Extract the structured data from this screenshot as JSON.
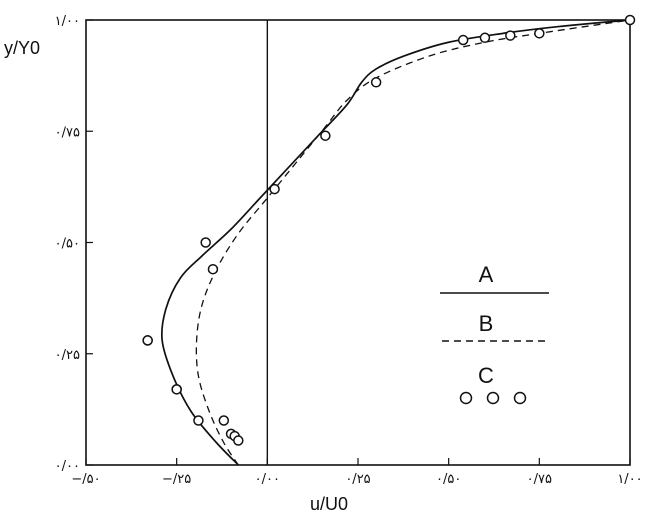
{
  "chart_data": {
    "type": "line",
    "xlabel": "u/U0",
    "ylabel": "y/Y0",
    "xlim": [
      -0.5,
      1.0
    ],
    "ylim": [
      0.0,
      1.0
    ],
    "x_ticks": [
      {
        "value": -0.5,
        "label": "−/۵۰"
      },
      {
        "value": -0.25,
        "label": "−/۲۵"
      },
      {
        "value": 0.0,
        "label": "۰/۰۰"
      },
      {
        "value": 0.25,
        "label": "۰/۲۵"
      },
      {
        "value": 0.5,
        "label": "۰/۵۰"
      },
      {
        "value": 0.75,
        "label": "۰/۷۵"
      },
      {
        "value": 1.0,
        "label": "۱/۰۰"
      }
    ],
    "y_ticks": [
      {
        "value": 0.0,
        "label": "۰/۰۰"
      },
      {
        "value": 0.25,
        "label": "۰/۲۵"
      },
      {
        "value": 0.5,
        "label": "۰/۵۰"
      },
      {
        "value": 0.75,
        "label": "۰/۷۵"
      },
      {
        "value": 1.0,
        "label": "۱/۰۰"
      }
    ],
    "series": [
      {
        "name": "A",
        "style": "solid",
        "x": [
          -0.08,
          -0.14,
          -0.21,
          -0.26,
          -0.29,
          -0.28,
          -0.24,
          -0.18,
          -0.1,
          -0.02,
          0.06,
          0.14,
          0.22,
          0.26,
          0.3,
          0.38,
          0.5,
          0.65,
          0.8,
          1.0
        ],
        "y": [
          0.0,
          0.05,
          0.12,
          0.2,
          0.28,
          0.35,
          0.42,
          0.47,
          0.53,
          0.6,
          0.67,
          0.74,
          0.81,
          0.86,
          0.89,
          0.92,
          0.95,
          0.97,
          0.985,
          1.0
        ]
      },
      {
        "name": "B",
        "style": "dashed",
        "x": [
          -0.08,
          -0.12,
          -0.16,
          -0.19,
          -0.195,
          -0.18,
          -0.14,
          -0.08,
          0.0,
          0.08,
          0.16,
          0.22,
          0.3,
          0.45,
          0.6,
          0.75,
          1.0
        ],
        "y": [
          0.0,
          0.05,
          0.12,
          0.2,
          0.28,
          0.36,
          0.44,
          0.52,
          0.6,
          0.68,
          0.76,
          0.82,
          0.87,
          0.92,
          0.95,
          0.97,
          1.0
        ]
      },
      {
        "name": "C",
        "style": "markers",
        "x": [
          -0.33,
          -0.25,
          -0.15,
          -0.17,
          -0.12,
          -0.1,
          -0.09,
          -0.08,
          -0.19,
          -0.25,
          -0.33,
          0.02,
          0.16,
          0.3,
          0.54,
          0.6,
          0.67,
          0.75,
          1.0
        ],
        "y": [
          0.28,
          0.17,
          0.44,
          0.5,
          0.1,
          0.07,
          0.065,
          0.055,
          0.1,
          0.17,
          0.28,
          0.62,
          0.74,
          0.86,
          0.955,
          0.96,
          0.965,
          0.97,
          1.0
        ]
      }
    ],
    "legend": {
      "position": "right-middle",
      "entries": [
        {
          "label": "A",
          "style": "solid"
        },
        {
          "label": "B",
          "style": "dashed"
        },
        {
          "label": "C",
          "style": "markers",
          "symbol": "ooo"
        }
      ]
    },
    "grid": false,
    "zero_line_x": 0.0,
    "colors": {
      "ink": "#111111",
      "background": "#ffffff"
    }
  }
}
